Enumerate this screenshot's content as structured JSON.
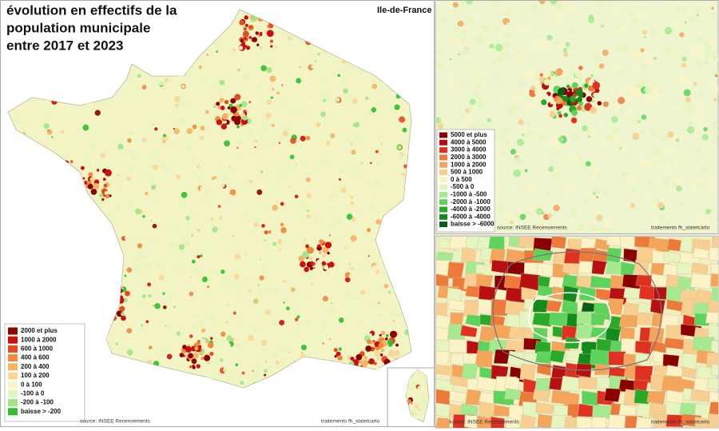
{
  "title_lines": [
    "évolution en effectifs de la",
    "population municipale",
    "entre 2017 et 2023"
  ],
  "inset_label": "Ile-de-France",
  "legend": [
    {
      "label": "2000 et plus",
      "color": "#8b0000"
    },
    {
      "label": "1000 à 2000",
      "color": "#cc1010"
    },
    {
      "label": "600 à 1000",
      "color": "#e84a20"
    },
    {
      "label": "400 à 600",
      "color": "#f08a3c"
    },
    {
      "label": "200 à 400",
      "color": "#f6b466"
    },
    {
      "label": "100 à 200",
      "color": "#f9d796"
    },
    {
      "label": "0 à 100",
      "color": "#fbf3c6"
    },
    {
      "label": "-100 à 0",
      "color": "#e6f5c0"
    },
    {
      "label": "-200 à -100",
      "color": "#9ee68a"
    },
    {
      "label": "baisse > -200",
      "color": "#2ec02e"
    }
  ],
  "legend_idf": [
    {
      "label": "5000 et plus",
      "color": "#8b0000"
    },
    {
      "label": "4000 à 5000",
      "color": "#b81010"
    },
    {
      "label": "3000 à 4000",
      "color": "#e03020"
    },
    {
      "label": "2000 à 3000",
      "color": "#ee7a3a"
    },
    {
      "label": "1000 à 2000",
      "color": "#f4a55a"
    },
    {
      "label": "500 à 1000",
      "color": "#f8cf8e"
    },
    {
      "label": "0 à 500",
      "color": "#fbf3c6"
    },
    {
      "label": "-500 à 0",
      "color": "#e6f5c0"
    },
    {
      "label": "-1000 à -500",
      "color": "#a6ea90"
    },
    {
      "label": "-2000 à -1000",
      "color": "#5cd45c"
    },
    {
      "label": "-4000 à -2000",
      "color": "#28aa28"
    },
    {
      "label": "-6000 à -4000",
      "color": "#138a1c"
    },
    {
      "label": "baisse > -6000",
      "color": "#075e14"
    }
  ],
  "source": "source: INSEE Recensements",
  "credit": "traitements fh_statetcarto"
}
